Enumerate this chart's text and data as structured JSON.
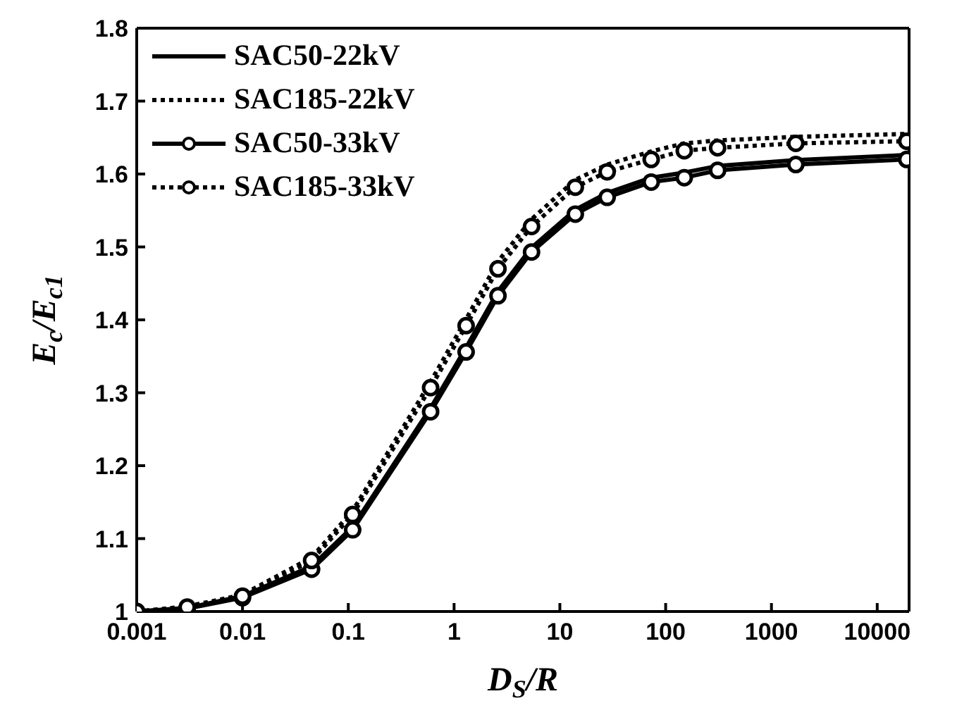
{
  "chart_data": {
    "type": "line",
    "xlabel": "D$_{S}$/R",
    "ylabel": "E$_{c}$/E$_{c1}$",
    "log": "x",
    "xlim": [
      0.001,
      20000
    ],
    "xticks": [
      0.001,
      0.01,
      0.1,
      1,
      10,
      100,
      1000,
      10000
    ],
    "ylim": [
      1,
      1.8
    ],
    "yticks": [
      1,
      1.1,
      1.2,
      1.3,
      1.4,
      1.5,
      1.6,
      1.7,
      1.8
    ],
    "legend": "top left",
    "x": [
      0.001,
      0.003,
      0.01,
      0.045,
      0.11,
      0.6,
      1.3,
      2.6,
      5.4,
      14,
      28,
      73,
      150,
      310,
      1700,
      19000
    ],
    "series": [
      {
        "name": "SAC50-22kV",
        "color": "#000000",
        "line_style": "solid",
        "marker": "none",
        "values": [
          1,
          1.005,
          1.021,
          1.062,
          1.116,
          1.279,
          1.362,
          1.439,
          1.499,
          1.551,
          1.574,
          1.595,
          1.602,
          1.611,
          1.619,
          1.626
        ]
      },
      {
        "name": "SAC185-22kV",
        "color": "#000000",
        "line_style": "dotted",
        "marker": "none",
        "values": [
          1,
          1.007,
          1.023,
          1.074,
          1.138,
          1.315,
          1.401,
          1.48,
          1.538,
          1.592,
          1.613,
          1.631,
          1.642,
          1.646,
          1.651,
          1.655
        ]
      },
      {
        "name": "SAC50-33kV",
        "color": "#000000",
        "line_style": "solid",
        "marker": "circle",
        "values": [
          1,
          1.004,
          1.019,
          1.058,
          1.112,
          1.274,
          1.356,
          1.433,
          1.493,
          1.545,
          1.568,
          1.589,
          1.595,
          1.605,
          1.613,
          1.62
        ]
      },
      {
        "name": "SAC185-33kV",
        "color": "#000000",
        "line_style": "dotted",
        "marker": "circle",
        "values": [
          1,
          1.006,
          1.021,
          1.07,
          1.133,
          1.307,
          1.392,
          1.47,
          1.528,
          1.582,
          1.603,
          1.62,
          1.632,
          1.636,
          1.642,
          1.645
        ]
      }
    ]
  }
}
